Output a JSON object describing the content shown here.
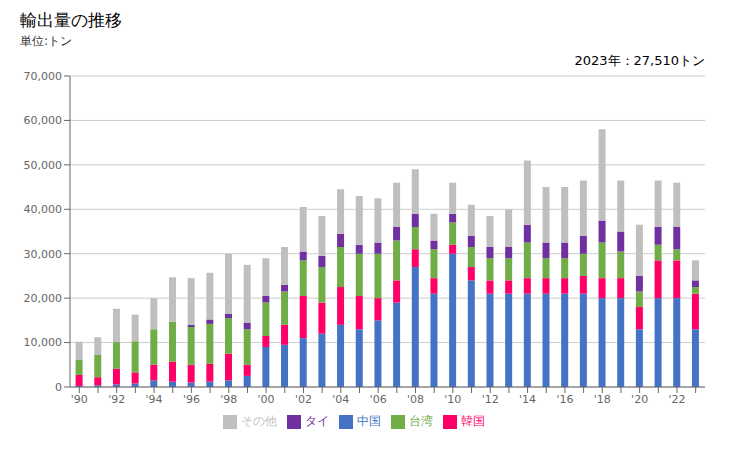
{
  "chart_data": {
    "type": "bar",
    "stacked": true,
    "title": "輸出量の推移",
    "subtitle": "単位:トン",
    "annotation": "2023年：27,510トン",
    "categories": [
      "'90",
      null,
      "'92",
      null,
      "'94",
      null,
      "'96",
      null,
      "'98",
      null,
      "'00",
      null,
      "'02",
      null,
      "'04",
      null,
      "'06",
      null,
      "'08",
      null,
      "'10",
      null,
      "'12",
      null,
      "'14",
      null,
      "'16",
      null,
      "'18",
      null,
      "'20",
      null,
      "'22",
      null
    ],
    "series": [
      {
        "name": "中国",
        "color": "#4472C4",
        "values": [
          200,
          400,
          600,
          800,
          1500,
          1200,
          1000,
          1200,
          1500,
          2500,
          9000,
          9500,
          11000,
          12000,
          14000,
          13000,
          15000,
          19000,
          27000,
          21000,
          30000,
          24000,
          21000,
          21000,
          21000,
          21000,
          21000,
          21000,
          20000,
          20000,
          13000,
          20000,
          20000,
          13000
        ]
      },
      {
        "name": "韓国",
        "color": "#FF0066",
        "values": [
          2500,
          1800,
          3500,
          2500,
          3500,
          4500,
          4000,
          4000,
          6000,
          2500,
          2500,
          4500,
          9500,
          7000,
          8500,
          7500,
          5000,
          5000,
          4000,
          3500,
          2000,
          3000,
          3000,
          3000,
          3500,
          3500,
          3500,
          4000,
          4500,
          4500,
          5000,
          8500,
          8500,
          8000
        ]
      },
      {
        "name": "台湾",
        "color": "#70AD47",
        "values": [
          3500,
          5000,
          6000,
          7000,
          8000,
          9000,
          8500,
          9000,
          8000,
          8000,
          7500,
          7500,
          8000,
          8000,
          9000,
          9500,
          10000,
          9000,
          5000,
          6500,
          5000,
          4500,
          5000,
          5000,
          8000,
          4500,
          4500,
          5000,
          8000,
          6000,
          3500,
          3500,
          2500,
          1500
        ]
      },
      {
        "name": "タイ",
        "color": "#7030A0",
        "values": [
          0,
          0,
          0,
          0,
          0,
          0,
          500,
          1000,
          1000,
          1500,
          1500,
          1500,
          2000,
          2500,
          3000,
          2000,
          2500,
          3000,
          3000,
          2000,
          2000,
          2500,
          2500,
          2500,
          4000,
          3500,
          3500,
          4000,
          5000,
          4500,
          3500,
          4000,
          5000,
          1500
        ]
      },
      {
        "name": "その他",
        "color": "#BFBFBF",
        "values": [
          4000,
          4000,
          7500,
          6000,
          7000,
          10000,
          10500,
          10500,
          13500,
          13000,
          8500,
          8500,
          10000,
          9000,
          10000,
          11000,
          10000,
          10000,
          10000,
          6000,
          7000,
          7000,
          7000,
          8500,
          14500,
          12500,
          12500,
          12500,
          20500,
          11500,
          11500,
          10500,
          10000,
          4500
        ]
      }
    ],
    "ylim": [
      0,
      70000
    ],
    "yticks": [
      0,
      {
        "value": 10000,
        "label": "10,000"
      },
      {
        "value": 20000,
        "label": "20,000"
      },
      {
        "value": 30000,
        "label": "30,000"
      },
      {
        "value": 40000,
        "label": "40,000"
      },
      {
        "value": 50000,
        "label": "50,000"
      },
      {
        "value": 60000,
        "label": "60,000"
      },
      {
        "value": 70000,
        "label": "70,000"
      }
    ],
    "grid": true,
    "legend": "bottom"
  }
}
